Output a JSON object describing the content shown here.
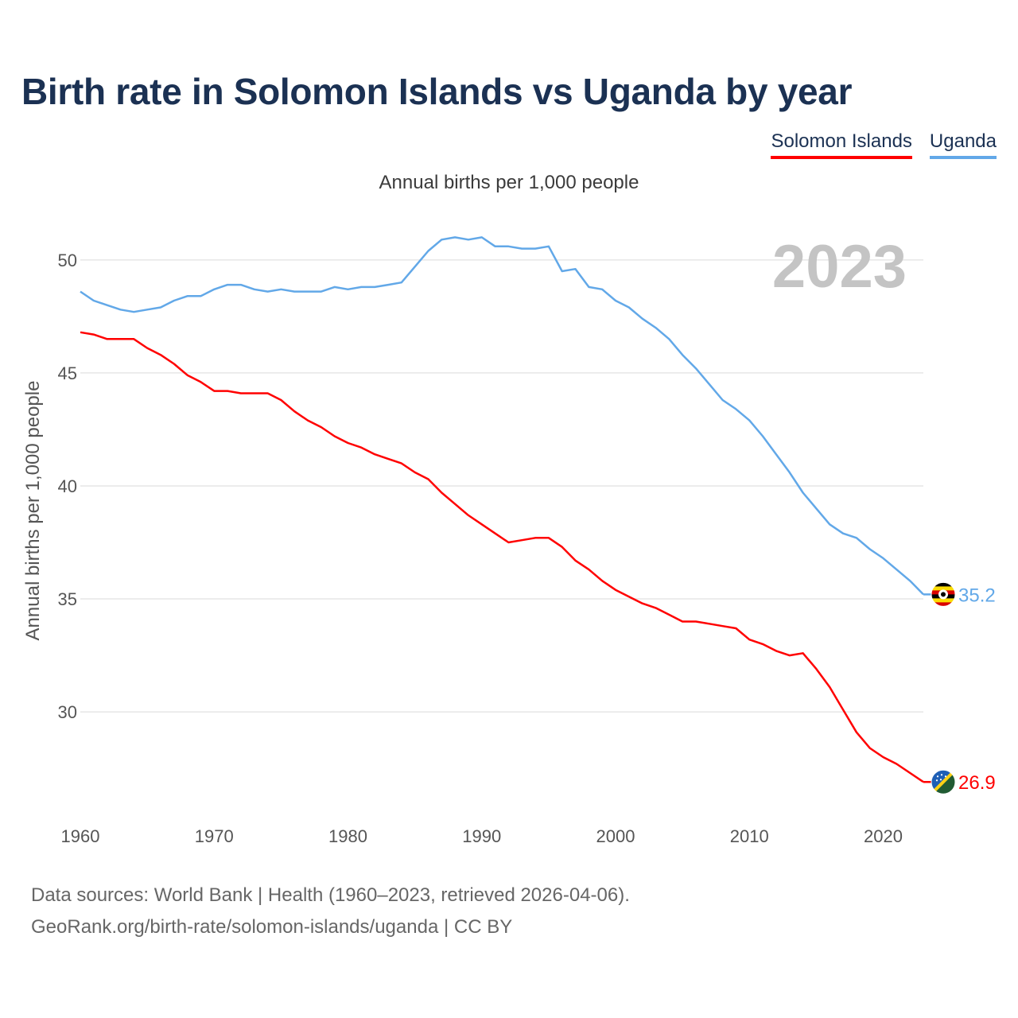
{
  "header": {
    "title": "Birth rate in Solomon Islands vs Uganda by year",
    "subtitle": "Annual births per 1,000 people"
  },
  "legend": {
    "items": [
      {
        "label": "Solomon Islands",
        "color": "#ff0000"
      },
      {
        "label": "Uganda",
        "color": "#62a8e8"
      }
    ]
  },
  "footer": {
    "line1": "Data sources: World Bank | Health (1960–2023, retrieved 2026-04-06).",
    "line2": "GeoRank.org/birth-rate/solomon-islands/uganda | CC BY"
  },
  "chart_data": {
    "type": "line",
    "title": "Birth rate in Solomon Islands vs Uganda by year",
    "ylabel": "Annual births per 1,000 people",
    "xlabel": "",
    "current_year_label": "2023",
    "xlim": [
      1960,
      2023
    ],
    "ylim": [
      25.5,
      52
    ],
    "xticks": [
      1960,
      1970,
      1980,
      1990,
      2000,
      2010,
      2020
    ],
    "yticks": [
      30,
      35,
      40,
      45,
      50
    ],
    "grid": true,
    "legend_position": "top-right",
    "x": [
      1960,
      1961,
      1962,
      1963,
      1964,
      1965,
      1966,
      1967,
      1968,
      1969,
      1970,
      1971,
      1972,
      1973,
      1974,
      1975,
      1976,
      1977,
      1978,
      1979,
      1980,
      1981,
      1982,
      1983,
      1984,
      1985,
      1986,
      1987,
      1988,
      1989,
      1990,
      1991,
      1992,
      1993,
      1994,
      1995,
      1996,
      1997,
      1998,
      1999,
      2000,
      2001,
      2002,
      2003,
      2004,
      2005,
      2006,
      2007,
      2008,
      2009,
      2010,
      2011,
      2012,
      2013,
      2014,
      2015,
      2016,
      2017,
      2018,
      2019,
      2020,
      2021,
      2022,
      2023
    ],
    "series": [
      {
        "name": "Solomon Islands",
        "color": "#ff0000",
        "end_label": "26.9",
        "flag": "solomon-islands-flag-icon",
        "values": [
          46.8,
          46.7,
          46.5,
          46.5,
          46.5,
          46.1,
          45.8,
          45.4,
          44.9,
          44.6,
          44.2,
          44.2,
          44.1,
          44.1,
          44.1,
          43.8,
          43.3,
          42.9,
          42.6,
          42.2,
          41.9,
          41.7,
          41.4,
          41.2,
          41.0,
          40.6,
          40.3,
          39.7,
          39.2,
          38.7,
          38.3,
          37.9,
          37.5,
          37.6,
          37.7,
          37.7,
          37.3,
          36.7,
          36.3,
          35.8,
          35.4,
          35.1,
          34.8,
          34.6,
          34.3,
          34.0,
          34.0,
          33.9,
          33.8,
          33.7,
          33.2,
          33.0,
          32.7,
          32.5,
          32.6,
          31.9,
          31.1,
          30.1,
          29.1,
          28.4,
          28.0,
          27.7,
          27.3,
          26.9
        ]
      },
      {
        "name": "Uganda",
        "color": "#62a8e8",
        "end_label": "35.2",
        "flag": "uganda-flag-icon",
        "values": [
          48.6,
          48.2,
          48.0,
          47.8,
          47.7,
          47.8,
          47.9,
          48.2,
          48.4,
          48.4,
          48.7,
          48.9,
          48.9,
          48.7,
          48.6,
          48.7,
          48.6,
          48.6,
          48.6,
          48.8,
          48.7,
          48.8,
          48.8,
          48.9,
          49.0,
          49.7,
          50.4,
          50.9,
          51.0,
          50.9,
          51.0,
          50.6,
          50.6,
          50.5,
          50.5,
          50.6,
          49.5,
          49.6,
          48.8,
          48.7,
          48.2,
          47.9,
          47.4,
          47.0,
          46.5,
          45.8,
          45.2,
          44.5,
          43.8,
          43.4,
          42.9,
          42.2,
          41.4,
          40.6,
          39.7,
          39.0,
          38.3,
          37.9,
          37.7,
          37.2,
          36.8,
          36.3,
          35.8,
          35.2
        ]
      }
    ]
  }
}
